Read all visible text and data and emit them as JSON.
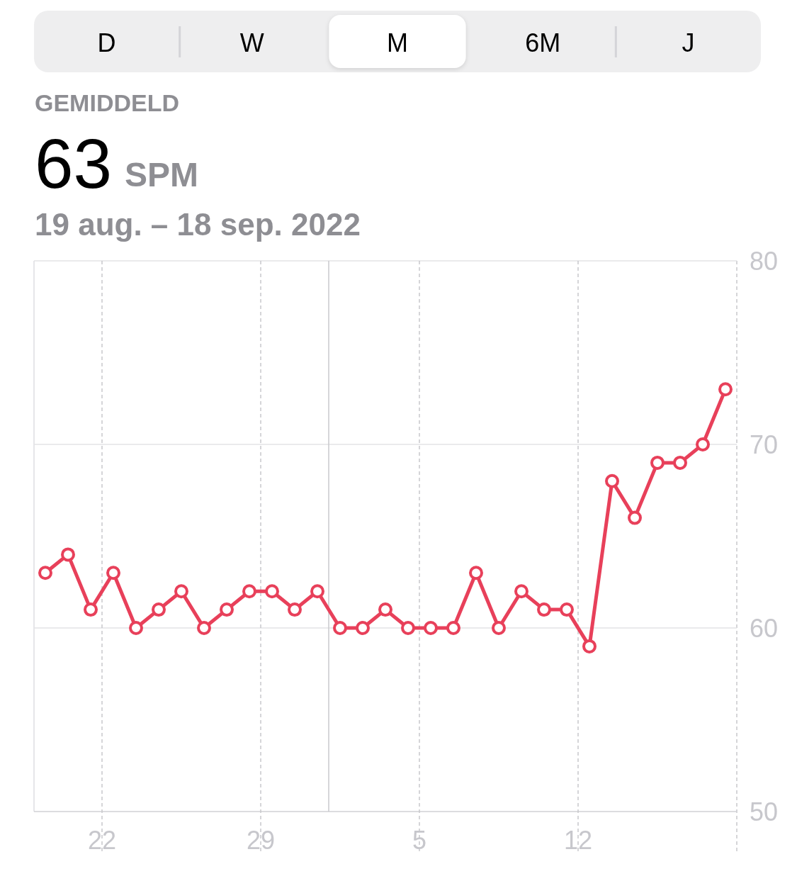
{
  "chart_data": {
    "type": "line",
    "title": "GEMIDDELD",
    "subtitle": "19 aug. – 18 sep. 2022",
    "ylabel": "SPM",
    "annotations": [
      "63",
      "D",
      "W",
      "M",
      "6M",
      "J"
    ],
    "x": [
      "2022-08-19T12:00",
      "2022-08-20T12:00",
      "2022-08-21T12:00",
      "2022-08-22T12:00",
      "2022-08-23T12:00",
      "2022-08-24T12:00",
      "2022-08-25T12:00",
      "2022-08-26T12:00",
      "2022-08-27T12:00",
      "2022-08-28T12:00",
      "2022-08-29T12:00",
      "2022-08-30T12:00",
      "2022-08-31T12:00",
      "2022-09-01T12:00",
      "2022-09-02T12:00",
      "2022-09-03T12:00",
      "2022-09-04T12:00",
      "2022-09-05T12:00",
      "2022-09-06T12:00",
      "2022-09-07T12:00",
      "2022-09-08T12:00",
      "2022-09-09T12:00",
      "2022-09-10T12:00",
      "2022-09-11T12:00",
      "2022-09-12T12:00",
      "2022-09-13T12:00",
      "2022-09-14T12:00",
      "2022-09-15T12:00",
      "2022-09-16T12:00",
      "2022-09-17T12:00",
      "2022-09-18T12:00"
    ],
    "series": [
      {
        "color": "#e8405a",
        "values": [
          63,
          64,
          61,
          63,
          60,
          61,
          62,
          60,
          61,
          62,
          62,
          61,
          62,
          60,
          60,
          61,
          60,
          60,
          60,
          63,
          60,
          62,
          61,
          61,
          59,
          68,
          66,
          69,
          69,
          70,
          73
        ]
      }
    ],
    "xlim": [
      "2022-08-19",
      "2022-09-19"
    ],
    "xticks": [
      {
        "value": "2022-08-22",
        "label": "22"
      },
      {
        "value": "2022-08-29",
        "label": "29"
      },
      {
        "value": "2022-09-05",
        "label": "5"
      },
      {
        "value": "2022-09-12",
        "label": "12"
      }
    ],
    "ylim": [
      50,
      80
    ],
    "yticks": [
      50,
      60,
      70,
      80
    ],
    "ref_lines": [
      {
        "axis": "x",
        "value": "2022-09-01",
        "color": "#c8c8cc",
        "line_style": "solid"
      }
    ],
    "grid": true,
    "marker": "circle",
    "line_style": "solid"
  }
}
